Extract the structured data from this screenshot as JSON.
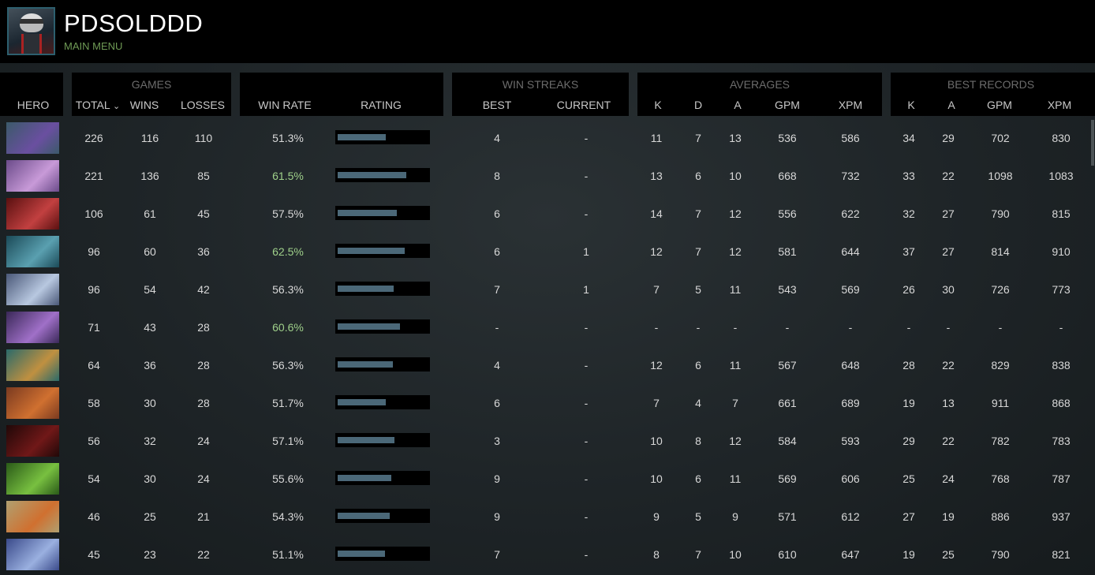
{
  "profile": {
    "name": "PDSOLDDD",
    "subtitle": "MAIN MENU"
  },
  "groups": {
    "games": "GAMES",
    "streaks": "WIN STREAKS",
    "averages": "AVERAGES",
    "best": "BEST RECORDS"
  },
  "columns": {
    "hero": "HERO",
    "total": "TOTAL",
    "sort_indicator": "⌄",
    "wins": "WINS",
    "losses": "LOSSES",
    "win_rate": "WIN RATE",
    "rating": "RATING",
    "best": "BEST",
    "current": "CURRENT",
    "avg_k": "K",
    "avg_d": "D",
    "avg_a": "A",
    "avg_gpm": "GPM",
    "avg_xpm": "XPM",
    "best_k": "K",
    "best_a": "A",
    "best_gpm": "GPM",
    "best_xpm": "XPM"
  },
  "colors": {
    "win_rate_high": "#9fd08a",
    "rating_bar": "#4b6878",
    "subtitle": "#6f9a55"
  },
  "rows": [
    {
      "hero_icon": "hero-tinker",
      "total": "226",
      "wins": "116",
      "losses": "110",
      "win_rate": "51.3%",
      "rating": 0.53,
      "best": "4",
      "current": "-",
      "k": "11",
      "d": "7",
      "a": "13",
      "gpm": "536",
      "xpm": "586",
      "bk": "34",
      "ba": "29",
      "bgpm": "702",
      "bxpm": "830"
    },
    {
      "hero_icon": "hero-templar-assassin",
      "total": "221",
      "wins": "136",
      "losses": "85",
      "win_rate": "61.5%",
      "rating": 0.76,
      "best": "8",
      "current": "-",
      "k": "13",
      "d": "6",
      "a": "10",
      "gpm": "668",
      "xpm": "732",
      "bk": "33",
      "ba": "22",
      "bgpm": "1098",
      "bxpm": "1083"
    },
    {
      "hero_icon": "hero-queen-of-pain",
      "total": "106",
      "wins": "61",
      "losses": "45",
      "win_rate": "57.5%",
      "rating": 0.65,
      "best": "6",
      "current": "-",
      "k": "14",
      "d": "7",
      "a": "12",
      "gpm": "556",
      "xpm": "622",
      "bk": "32",
      "ba": "27",
      "bgpm": "790",
      "bxpm": "815"
    },
    {
      "hero_icon": "hero-phantom-assassin",
      "total": "96",
      "wins": "60",
      "losses": "36",
      "win_rate": "62.5%",
      "rating": 0.74,
      "best": "6",
      "current": "1",
      "k": "12",
      "d": "7",
      "a": "12",
      "gpm": "581",
      "xpm": "644",
      "bk": "37",
      "ba": "27",
      "bgpm": "814",
      "bxpm": "910"
    },
    {
      "hero_icon": "hero-drow-ranger",
      "total": "96",
      "wins": "54",
      "losses": "42",
      "win_rate": "56.3%",
      "rating": 0.62,
      "best": "7",
      "current": "1",
      "k": "7",
      "d": "5",
      "a": "11",
      "gpm": "543",
      "xpm": "569",
      "bk": "26",
      "ba": "30",
      "bgpm": "726",
      "bxpm": "773"
    },
    {
      "hero_icon": "hero-faceless-void",
      "total": "71",
      "wins": "43",
      "losses": "28",
      "win_rate": "60.6%",
      "rating": 0.69,
      "best": "-",
      "current": "-",
      "k": "-",
      "d": "-",
      "a": "-",
      "gpm": "-",
      "xpm": "-",
      "bk": "-",
      "ba": "-",
      "bgpm": "-",
      "bxpm": "-"
    },
    {
      "hero_icon": "hero-clinkz",
      "total": "64",
      "wins": "36",
      "losses": "28",
      "win_rate": "56.3%",
      "rating": 0.61,
      "best": "4",
      "current": "-",
      "k": "12",
      "d": "6",
      "a": "11",
      "gpm": "567",
      "xpm": "648",
      "bk": "28",
      "ba": "22",
      "bgpm": "829",
      "bxpm": "838"
    },
    {
      "hero_icon": "hero-anti-mage",
      "total": "58",
      "wins": "30",
      "losses": "28",
      "win_rate": "51.7%",
      "rating": 0.53,
      "best": "6",
      "current": "-",
      "k": "7",
      "d": "4",
      "a": "7",
      "gpm": "661",
      "xpm": "689",
      "bk": "19",
      "ba": "13",
      "bgpm": "911",
      "bxpm": "868"
    },
    {
      "hero_icon": "hero-shadow-fiend",
      "total": "56",
      "wins": "32",
      "losses": "24",
      "win_rate": "57.1%",
      "rating": 0.63,
      "best": "3",
      "current": "-",
      "k": "10",
      "d": "8",
      "a": "12",
      "gpm": "584",
      "xpm": "593",
      "bk": "29",
      "ba": "22",
      "bgpm": "782",
      "bxpm": "783"
    },
    {
      "hero_icon": "hero-viper",
      "total": "54",
      "wins": "30",
      "losses": "24",
      "win_rate": "55.6%",
      "rating": 0.59,
      "best": "9",
      "current": "-",
      "k": "10",
      "d": "6",
      "a": "11",
      "gpm": "569",
      "xpm": "606",
      "bk": "25",
      "ba": "24",
      "bgpm": "768",
      "bxpm": "787"
    },
    {
      "hero_icon": "hero-troll-warlord",
      "total": "46",
      "wins": "25",
      "losses": "21",
      "win_rate": "54.3%",
      "rating": 0.57,
      "best": "9",
      "current": "-",
      "k": "9",
      "d": "5",
      "a": "9",
      "gpm": "571",
      "xpm": "612",
      "bk": "27",
      "ba": "19",
      "bgpm": "886",
      "bxpm": "937"
    },
    {
      "hero_icon": "hero-luna",
      "total": "45",
      "wins": "23",
      "losses": "22",
      "win_rate": "51.1%",
      "rating": 0.52,
      "best": "7",
      "current": "-",
      "k": "8",
      "d": "7",
      "a": "10",
      "gpm": "610",
      "xpm": "647",
      "bk": "19",
      "ba": "25",
      "bgpm": "790",
      "bxpm": "821"
    }
  ]
}
